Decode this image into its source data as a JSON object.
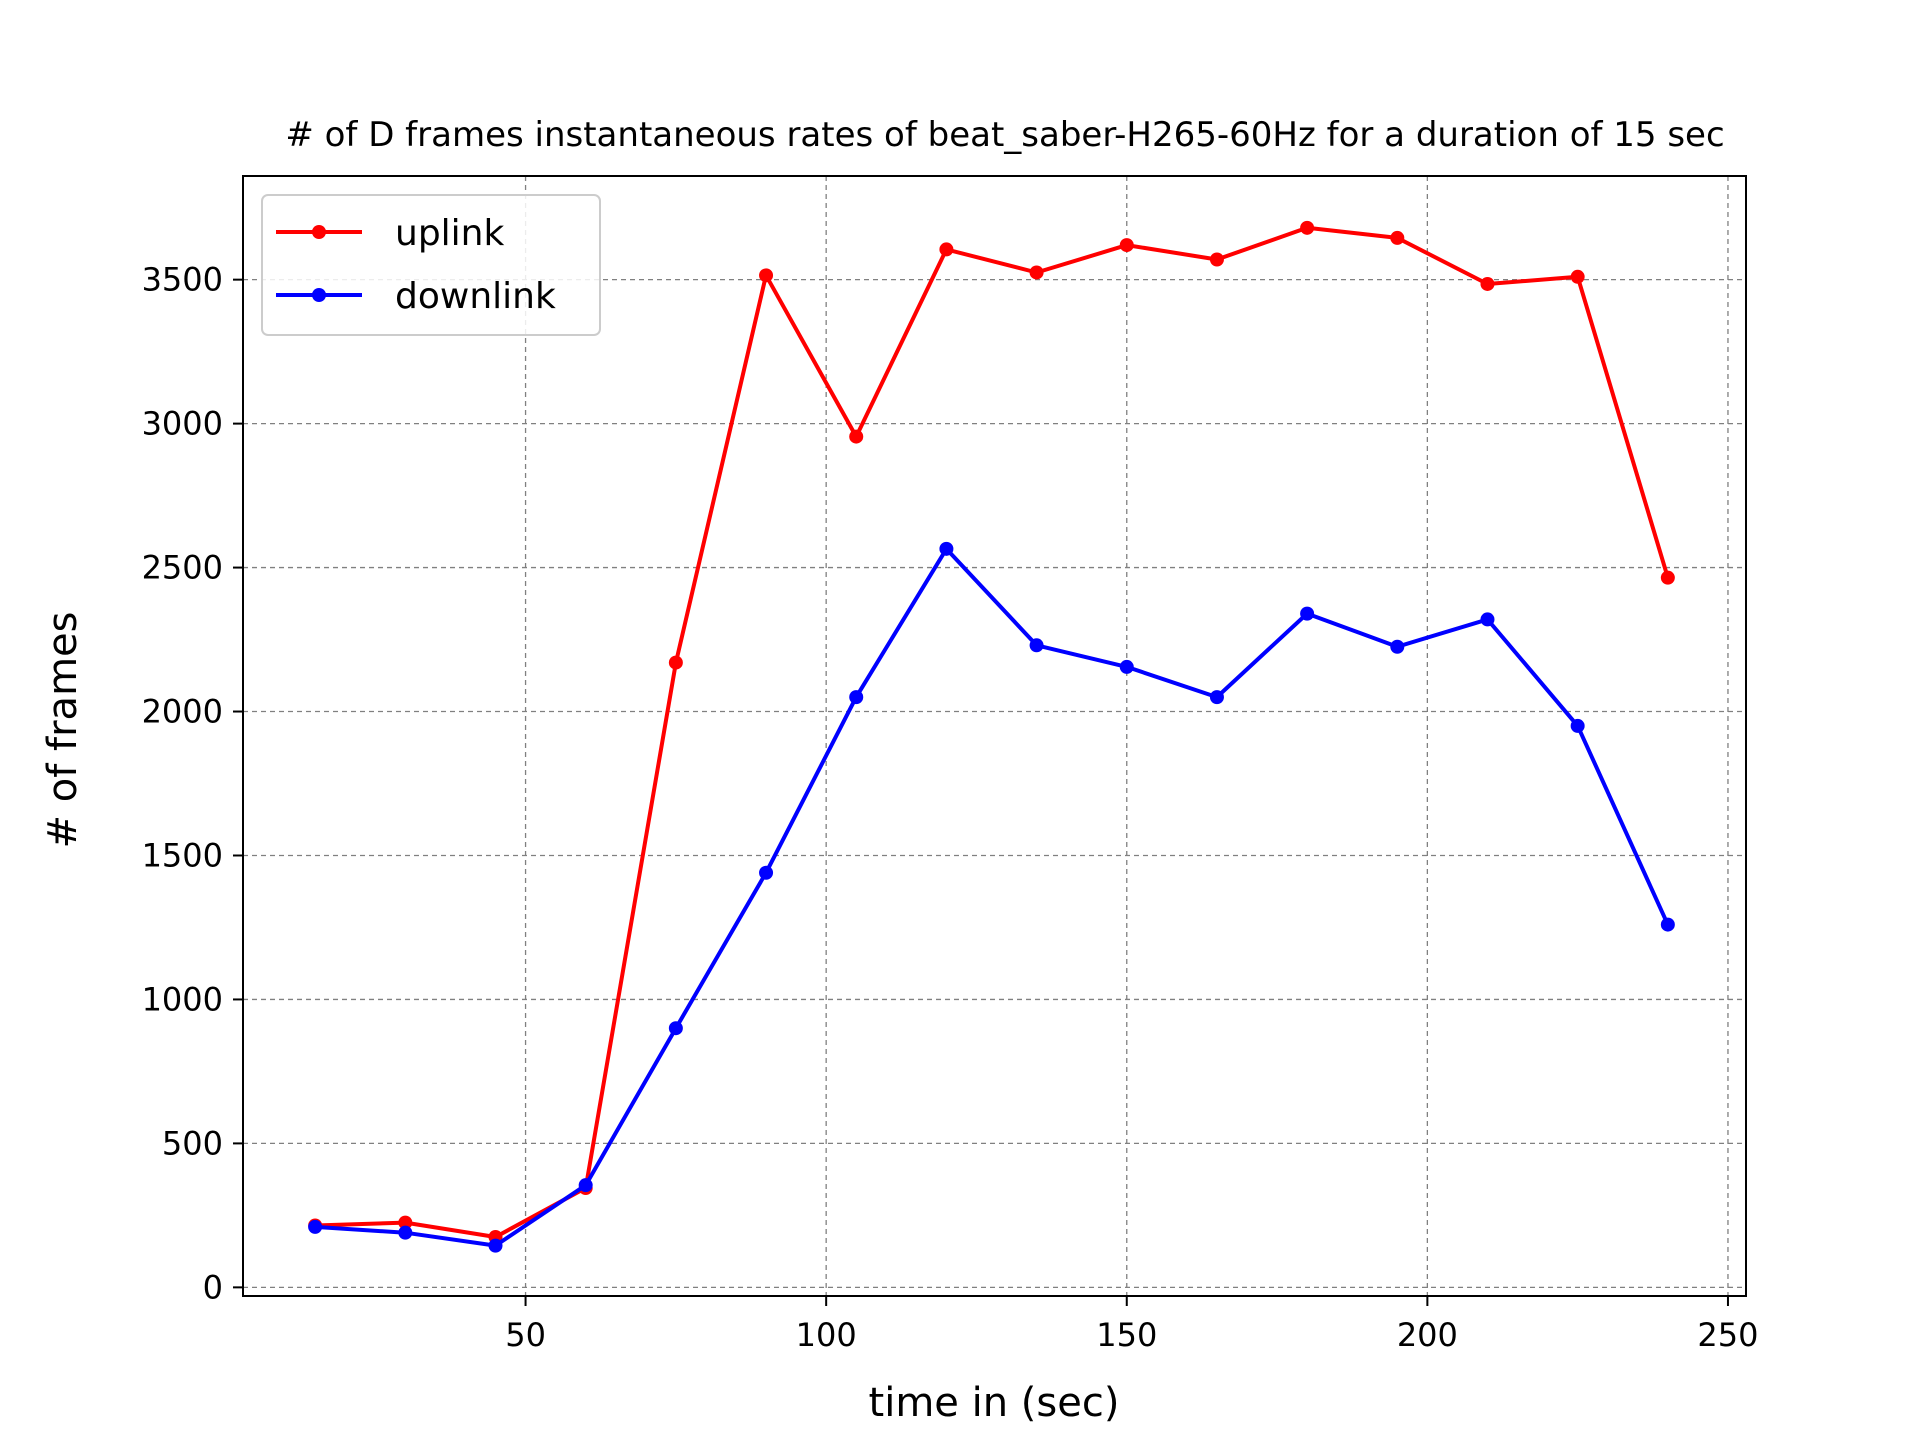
{
  "chart_data": {
    "type": "line",
    "title": "# of D frames instantaneous rates of beat_saber-H265-60Hz for a duration of 15 sec",
    "xlabel": "time in (sec)",
    "ylabel": "# of frames",
    "xlim": [
      3,
      253
    ],
    "ylim": [
      -30,
      3860
    ],
    "xticks": [
      50,
      100,
      150,
      200,
      250
    ],
    "yticks": [
      0,
      500,
      1000,
      1500,
      2000,
      2500,
      3000,
      3500
    ],
    "grid": true,
    "legend_position": "top-left",
    "x": [
      15,
      30,
      45,
      60,
      75,
      90,
      105,
      120,
      135,
      150,
      165,
      180,
      195,
      210,
      225,
      240
    ],
    "series": [
      {
        "name": "uplink",
        "color": "#ff0000",
        "values": [
          215,
          225,
          175,
          345,
          2170,
          3515,
          2955,
          3605,
          3525,
          3620,
          3570,
          3680,
          3645,
          3485,
          3510,
          2465
        ]
      },
      {
        "name": "downlink",
        "color": "#0000ff",
        "values": [
          210,
          190,
          145,
          355,
          900,
          1440,
          2050,
          2565,
          2230,
          2155,
          2050,
          2340,
          2225,
          2320,
          1950,
          1260
        ]
      }
    ]
  }
}
